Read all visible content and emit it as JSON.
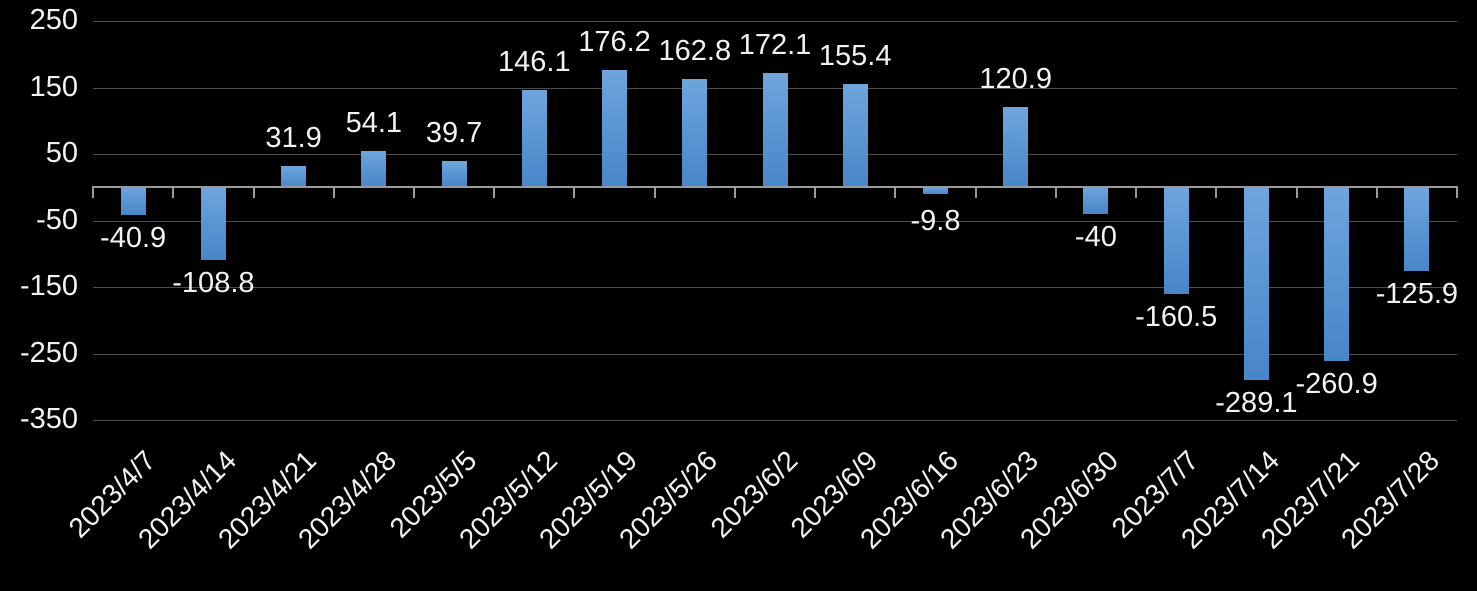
{
  "chart_data": {
    "type": "bar",
    "title": "",
    "xlabel": "",
    "ylabel": "",
    "categories": [
      "2023/4/7",
      "2023/4/14",
      "2023/4/21",
      "2023/4/28",
      "2023/5/5",
      "2023/5/12",
      "2023/5/19",
      "2023/5/26",
      "2023/6/2",
      "2023/6/9",
      "2023/6/16",
      "2023/6/23",
      "2023/6/30",
      "2023/7/7",
      "2023/7/14",
      "2023/7/21",
      "2023/7/28"
    ],
    "values": [
      -40.9,
      -108.8,
      31.9,
      54.1,
      39.7,
      146.1,
      176.2,
      162.8,
      172.1,
      155.4,
      -9.8,
      120.9,
      -40,
      -160.5,
      -289.1,
      -260.9,
      -125.9
    ],
    "value_labels": [
      "-40.9",
      "-108.8",
      "31.9",
      "54.1",
      "39.7",
      "146.1",
      "176.2",
      "162.8",
      "172.1",
      "155.4",
      "-9.8",
      "120.9",
      "-40",
      "-160.5",
      "-289.1",
      "-260.9",
      "-125.9"
    ],
    "yticks": [
      250,
      150,
      50,
      -50,
      -150,
      -250,
      -350
    ],
    "ytick_labels": [
      "250",
      "150",
      "50",
      "-50",
      "-150",
      "-250",
      "-350"
    ],
    "ylim": [
      -350,
      250
    ],
    "grid": true,
    "legend": false,
    "colors": {
      "background": "#000000",
      "bar_gradient_top": "#6EA5DC",
      "bar_gradient_bottom": "#4886C9",
      "gridline": "#4d4d4d",
      "axis_line": "#9a9a9a",
      "label_text": "#f2f2f2"
    }
  }
}
